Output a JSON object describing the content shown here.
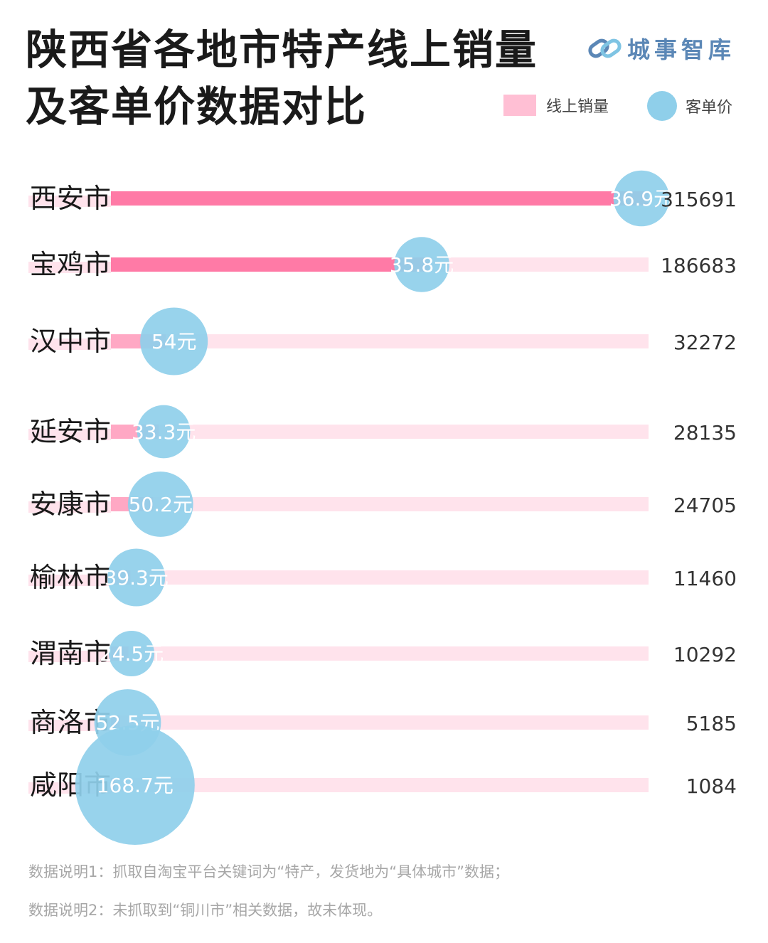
{
  "title_line1": "陕西省各地市特产线上销量",
  "title_line2": "及客单价数据对比",
  "logo_text": "城事智库",
  "legend": {
    "sales": "线上销量",
    "price": "客单价"
  },
  "colors": {
    "bar_full": "#ff7aa6",
    "bar_medium": "#ffa8c4",
    "track": "#ffe3ec",
    "bubble": "#8fcfea",
    "label": "#1a1a1a"
  },
  "chart_data": {
    "type": "bar",
    "categories": [
      "西安市",
      "宝鸡市",
      "汉中市",
      "延安市",
      "安康市",
      "榆林市",
      "渭南市",
      "商洛市",
      "咸阳市"
    ],
    "series": [
      {
        "name": "线上销量",
        "values": [
          315691,
          186683,
          32272,
          28135,
          24705,
          11460,
          10292,
          5185,
          1084
        ]
      },
      {
        "name": "客单价",
        "values": [
          36.9,
          35.8,
          54,
          33.3,
          50.2,
          39.3,
          24.5,
          52.5,
          168.7
        ],
        "unit": "元"
      }
    ],
    "value_labels": [
      "315691",
      "186683",
      "32272",
      "28135",
      "24705",
      "11460",
      "10292",
      "5185",
      "1084"
    ],
    "price_labels": [
      "36.9元",
      "35.8元",
      "54元",
      "33.3元",
      "50.2元",
      "39.3元",
      "24.5元",
      "52.5元",
      "168.7元"
    ]
  },
  "notes": [
    "数据说明1：抓取自淘宝平台关键词为“特产，发货地为“具体城市”数据；",
    "数据说明2：未抓取到“铜川市”相关数据，故未体现。"
  ]
}
